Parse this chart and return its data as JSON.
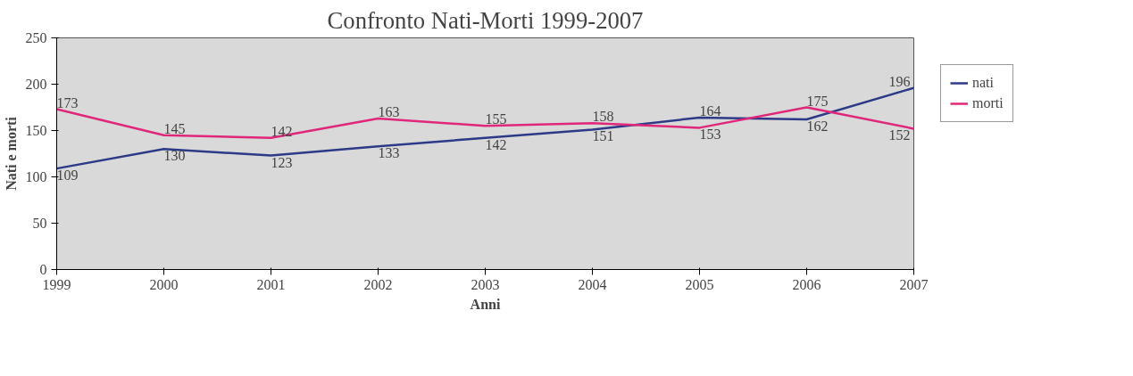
{
  "chart_data": {
    "type": "line",
    "title": "Confronto Nati-Morti 1999-2007",
    "xlabel": "Anni",
    "ylabel": "Nati e morti",
    "x": [
      1999,
      2000,
      2001,
      2002,
      2003,
      2004,
      2005,
      2006,
      2007
    ],
    "series": [
      {
        "name": "nati",
        "color": "#2e3a87",
        "values": [
          109,
          130,
          123,
          133,
          142,
          151,
          164,
          162,
          196
        ]
      },
      {
        "name": "morti",
        "color": "#e0287a",
        "values": [
          173,
          145,
          142,
          163,
          155,
          158,
          153,
          175,
          152
        ]
      }
    ],
    "xlim": [
      1999,
      2007
    ],
    "xticks": [
      1999,
      2000,
      2001,
      2002,
      2003,
      2004,
      2005,
      2006,
      2007
    ],
    "ylim": [
      0,
      250
    ],
    "yticks": [
      0,
      50,
      100,
      150,
      200,
      250
    ],
    "data_labels": true,
    "grid": false,
    "legend": "right",
    "marker": "none",
    "line_style": "solid"
  }
}
